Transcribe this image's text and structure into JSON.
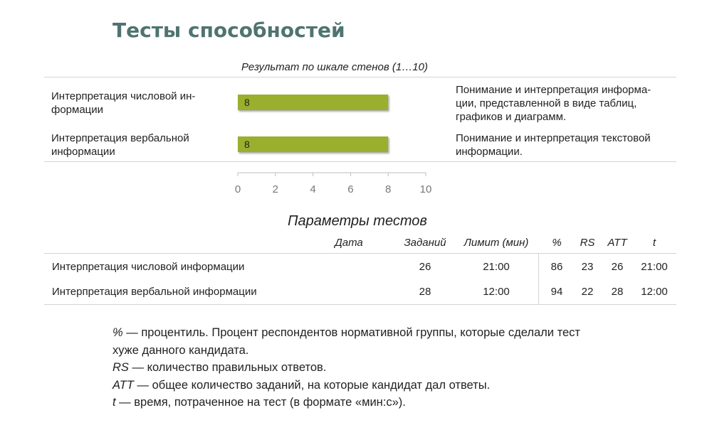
{
  "title": "Тесты способностей",
  "chart_data": {
    "type": "bar",
    "orientation": "horizontal",
    "title": "Результат по шкале стенов (1…10)",
    "categories": [
      "Интерпретация числовой ин-формации",
      "Интерпретация вербальной информации"
    ],
    "categories_display": [
      [
        "Интерпретация числовой ин-",
        "формации"
      ],
      [
        "Интерпретация вербальной",
        "информации"
      ]
    ],
    "values": [
      8,
      8
    ],
    "data_labels": [
      "8",
      "8"
    ],
    "xlim": [
      0,
      10
    ],
    "xticks": [
      "0",
      "2",
      "4",
      "6",
      "8",
      "10"
    ],
    "bar_color": "#9aaf2e",
    "grid": false
  },
  "descriptions": [
    [
      "Понимание и интерпретация информа-",
      "ции, представленной в виде таблиц,",
      "графиков и диаграмм."
    ],
    [
      "Понимание и интерпретация текстовой",
      "информации."
    ]
  ],
  "params": {
    "title": "Параметры тестов",
    "headers": {
      "date": "Дата",
      "tasks": "Заданий",
      "limit": "Лимит (мин)",
      "pct": "%",
      "rs": "RS",
      "att": "ATT",
      "t": "t"
    },
    "rows": [
      {
        "name": "Интерпретация числовой информации",
        "date": "",
        "tasks": "26",
        "limit": "21:00",
        "pct": "86",
        "rs": "23",
        "att": "26",
        "t": "21:00"
      },
      {
        "name": "Интерпретация вербальной информации",
        "date": "",
        "tasks": "28",
        "limit": "12:00",
        "pct": "94",
        "rs": "22",
        "att": "28",
        "t": "12:00"
      }
    ]
  },
  "notes": [
    {
      "term": "%",
      "text": " — процентиль. Процент респондентов нормативной группы, которые сделали тест"
    },
    {
      "term": "",
      "text": "хуже данного кандидата."
    },
    {
      "term": "RS",
      "text": " — количество правильных ответов."
    },
    {
      "term": "ATT",
      "text": " — общее количество заданий, на которые кандидат дал ответы."
    },
    {
      "term": "t",
      "text": " — время, потраченное на тест (в формате «мин:с»)."
    }
  ]
}
